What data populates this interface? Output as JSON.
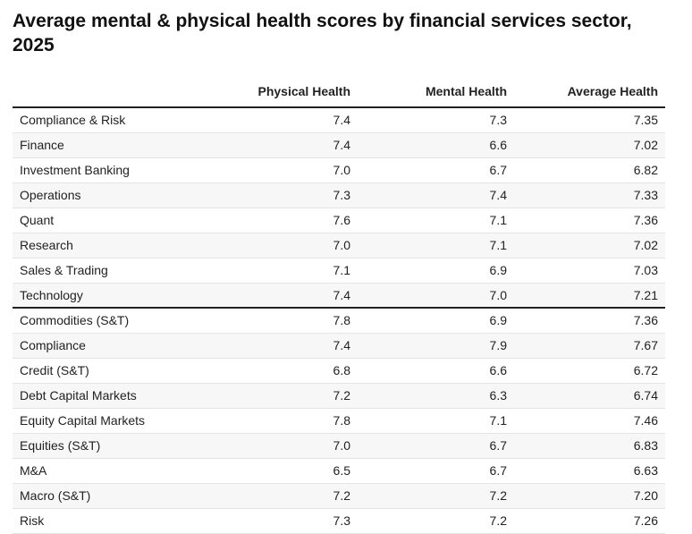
{
  "chart_data": {
    "type": "table",
    "title": "Average mental & physical health scores by financial services sector, 2025",
    "columns": [
      "",
      "Physical Health",
      "Mental Health",
      "Average Health"
    ],
    "groups": [
      {
        "rows": [
          {
            "sector": "Compliance & Risk",
            "physical": "7.4",
            "mental": "7.3",
            "average": "7.35"
          },
          {
            "sector": "Finance",
            "physical": "7.4",
            "mental": "6.6",
            "average": "7.02"
          },
          {
            "sector": "Investment Banking",
            "physical": "7.0",
            "mental": "6.7",
            "average": "6.82"
          },
          {
            "sector": "Operations",
            "physical": "7.3",
            "mental": "7.4",
            "average": "7.33"
          },
          {
            "sector": "Quant",
            "physical": "7.6",
            "mental": "7.1",
            "average": "7.36"
          },
          {
            "sector": "Research",
            "physical": "7.0",
            "mental": "7.1",
            "average": "7.02"
          },
          {
            "sector": "Sales & Trading",
            "physical": "7.1",
            "mental": "6.9",
            "average": "7.03"
          },
          {
            "sector": "Technology",
            "physical": "7.4",
            "mental": "7.0",
            "average": "7.21"
          }
        ]
      },
      {
        "rows": [
          {
            "sector": "Commodities (S&T)",
            "physical": "7.8",
            "mental": "6.9",
            "average": "7.36"
          },
          {
            "sector": "Compliance",
            "physical": "7.4",
            "mental": "7.9",
            "average": "7.67"
          },
          {
            "sector": "Credit (S&T)",
            "physical": "6.8",
            "mental": "6.6",
            "average": "6.72"
          },
          {
            "sector": "Debt Capital Markets",
            "physical": "7.2",
            "mental": "6.3",
            "average": "6.74"
          },
          {
            "sector": "Equity Capital Markets",
            "physical": "7.8",
            "mental": "7.1",
            "average": "7.46"
          },
          {
            "sector": "Equities (S&T)",
            "physical": "7.0",
            "mental": "6.7",
            "average": "6.83"
          },
          {
            "sector": "M&A",
            "physical": "6.5",
            "mental": "6.7",
            "average": "6.63"
          },
          {
            "sector": "Macro (S&T)",
            "physical": "7.2",
            "mental": "7.2",
            "average": "7.20"
          },
          {
            "sector": "Risk",
            "physical": "7.3",
            "mental": "7.2",
            "average": "7.26"
          }
        ]
      }
    ],
    "colors": {
      "rule": "#222222",
      "row_divider": "#e3e3e3",
      "alt_row": "#f7f7f7"
    }
  }
}
